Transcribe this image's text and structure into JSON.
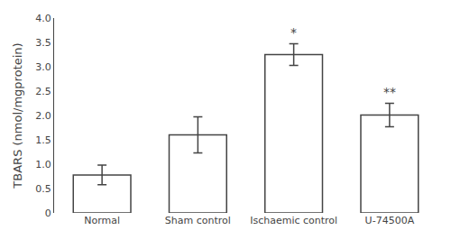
{
  "chart_data": {
    "type": "bar",
    "categories": [
      "Normal",
      "Sham control",
      "Ischaemic control",
      "U-74500A"
    ],
    "values": [
      0.78,
      1.6,
      3.25,
      2.01
    ],
    "errors": [
      0.2,
      0.37,
      0.22,
      0.24
    ],
    "annotations": [
      {
        "category": "Ischaemic control",
        "text": "*"
      },
      {
        "category": "U-74500A",
        "text": "**"
      }
    ],
    "color": "#ffffff",
    "ylabel": "TBARS (nmol/mgprotein)",
    "ylim": [
      0,
      4.0
    ],
    "yticks": [
      0,
      0.5,
      {
        "value": 1,
        "label": "1.0"
      },
      1.5,
      {
        "value": 2,
        "label": "2.0"
      },
      2.5,
      {
        "value": 3,
        "label": "3.0"
      },
      3.5,
      {
        "value": 4,
        "label": "4.0"
      }
    ],
    "grid": false
  }
}
